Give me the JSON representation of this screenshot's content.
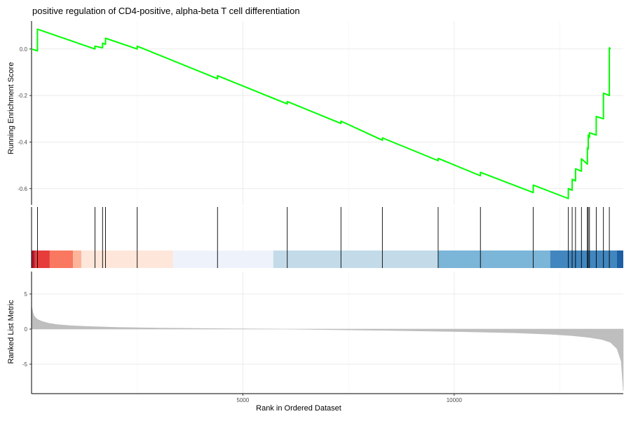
{
  "chart_data": {
    "type": "line",
    "title": "positive regulation of CD4-positive, alpha-beta T cell differentiation",
    "xlabel": "Rank in Ordered Dataset",
    "xlim": [
      0,
      14000
    ],
    "x_ticks": [
      5000,
      10000
    ],
    "x_tick_labels": [
      "5000",
      "10000"
    ],
    "grid": true,
    "panels": {
      "running_es": {
        "ylabel": "Running Enrichment Score",
        "ylim": [
          -0.67,
          0.12
        ],
        "y_ticks": [
          0.0,
          -0.2,
          -0.4,
          -0.6
        ],
        "y_tick_labels": [
          "0.0",
          "-0.2",
          "-0.4",
          "-0.6"
        ],
        "color": "#00ff00",
        "series": [
          {
            "x": [
              0,
              140,
              140,
              1500,
              1500,
              1680,
              1680,
              1750,
              1750,
              2500,
              2500,
              4400,
              4400,
              6050,
              6050,
              7320,
              7320,
              8300,
              8300,
              9620,
              9620,
              10620,
              10620,
              11870,
              11870,
              12700,
              12700,
              12790,
              12790,
              12870,
              12870,
              13010,
              13010,
              13150,
              13150,
              13170,
              13170,
              13200,
              13200,
              13360,
              13360,
              13530,
              13530,
              13670,
              13670,
              13700
            ],
            "y": [
              0.0,
              -0.008,
              0.085,
              0.0,
              0.012,
              0.005,
              0.025,
              0.02,
              0.046,
              0.0,
              0.012,
              -0.128,
              -0.115,
              -0.236,
              -0.226,
              -0.32,
              -0.31,
              -0.392,
              -0.382,
              -0.48,
              -0.47,
              -0.545,
              -0.53,
              -0.617,
              -0.585,
              -0.643,
              -0.6,
              -0.607,
              -0.56,
              -0.567,
              -0.515,
              -0.525,
              -0.472,
              -0.495,
              -0.425,
              -0.43,
              -0.37,
              -0.38,
              -0.36,
              -0.37,
              -0.29,
              -0.3,
              -0.19,
              -0.2,
              0.005,
              0.0
            ]
          }
        ]
      },
      "gene_hits": {
        "x": [
          140,
          1500,
          1680,
          1750,
          2500,
          4400,
          6050,
          7320,
          8300,
          9620,
          10620,
          11870,
          12700,
          12790,
          12870,
          13010,
          13150,
          13170,
          13200,
          13360,
          13530,
          13670
        ],
        "color_bands": [
          {
            "start": 0,
            "end": 80,
            "color": "#b2182b"
          },
          {
            "start": 80,
            "end": 430,
            "color": "#e63c3c"
          },
          {
            "start": 430,
            "end": 980,
            "color": "#fa7860"
          },
          {
            "start": 980,
            "end": 1180,
            "color": "#fcb59a"
          },
          {
            "start": 1180,
            "end": 3350,
            "color": "#fee6da"
          },
          {
            "start": 3350,
            "end": 5720,
            "color": "#eef3fb"
          },
          {
            "start": 5720,
            "end": 9620,
            "color": "#c3dbe9"
          },
          {
            "start": 9620,
            "end": 12270,
            "color": "#7bb5d8"
          },
          {
            "start": 12270,
            "end": 13850,
            "color": "#4186be"
          },
          {
            "start": 13850,
            "end": 14000,
            "color": "#1e5ea3"
          }
        ]
      },
      "ranked_metric": {
        "ylabel": "Ranked List Metric",
        "ylim": [
          -9.2,
          8.2
        ],
        "y_ticks": [
          5,
          0,
          -5
        ],
        "y_tick_labels": [
          "5",
          "0",
          "-5"
        ],
        "fill": "#bebebe",
        "x": [
          0,
          10,
          30,
          60,
          100,
          150,
          250,
          400,
          600,
          900,
          1300,
          2000,
          3000,
          4500,
          6000,
          7000,
          8500,
          10000,
          11500,
          12300,
          12800,
          13200,
          13500,
          13700,
          13850,
          13950,
          14000
        ],
        "y": [
          0,
          3.1,
          2.4,
          1.9,
          1.6,
          1.35,
          1.1,
          0.85,
          0.65,
          0.5,
          0.38,
          0.25,
          0.15,
          0.06,
          0.0,
          -0.08,
          -0.2,
          -0.35,
          -0.55,
          -0.75,
          -0.95,
          -1.2,
          -1.5,
          -1.9,
          -2.8,
          -4.6,
          -8.8
        ]
      }
    }
  }
}
